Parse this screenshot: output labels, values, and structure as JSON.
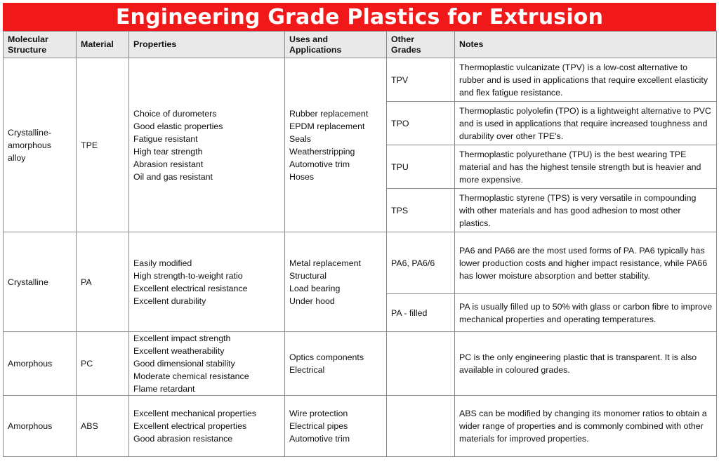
{
  "title": "Engineering Grade Plastics for Extrusion",
  "headers": {
    "molecular": "Molecular\nStructure",
    "material": "Material",
    "properties": "Properties",
    "uses": "Uses and\nApplications",
    "other": "Other\nGrades",
    "notes": "Notes"
  },
  "rows": {
    "tpe": {
      "structure": "Crystalline-\namorphous\nalloy",
      "material": "TPE",
      "properties": "Choice of durometers\nGood elastic properties\nFatigue resistant\nHigh tear strength\nAbrasion resistant\nOil and gas resistant",
      "uses": "Rubber replacement\nEPDM replacement\nSeals\nWeatherstripping\nAutomotive trim\nHoses",
      "grades": [
        {
          "grade": "TPV",
          "note": "Thermoplastic vulcanizate (TPV) is a low-cost alternative to rubber and is used in applications that require excellent elasticity and flex fatigue resistance."
        },
        {
          "grade": "TPO",
          "note": "Thermoplastic polyolefin (TPO) is a lightweight alternative to PVC and is used in applications that require increased toughness and durability over other TPE's."
        },
        {
          "grade": "TPU",
          "note": "Thermoplastic polyurethane (TPU) is the best wearing TPE material and has the highest tensile strength but is heavier and more expensive."
        },
        {
          "grade": "TPS",
          "note": "Thermoplastic styrene (TPS) is very versatile in compounding with other materials and has good adhesion to most other plastics."
        }
      ]
    },
    "pa": {
      "structure": "Crystalline",
      "material": "PA",
      "properties": "Easily modified\nHigh strength-to-weight ratio\nExcellent electrical resistance\nExcellent durability",
      "uses": "Metal replacement\nStructural\nLoad bearing\nUnder hood",
      "grades": [
        {
          "grade": "PA6, PA6/6",
          "note": "PA6 and PA66 are the most used forms of PA. PA6 typically has lower production costs and higher impact resistance, while PA66 has lower moisture absorption and better stability."
        },
        {
          "grade": "PA - filled",
          "note": "PA is usually filled up to 50% with glass or carbon fibre to improve mechanical properties and operating temperatures."
        }
      ]
    },
    "pc": {
      "structure": "Amorphous",
      "material": "PC",
      "properties": "Excellent impact strength\nExcellent weatherability\nGood dimensional stability\nModerate chemical resistance\nFlame retardant",
      "uses": "Optics components\nElectrical",
      "grade": "",
      "note": "PC is the only engineering plastic that is transparent. It is also available in coloured grades."
    },
    "abs": {
      "structure": "Amorphous",
      "material": "ABS",
      "properties": "Excellent mechanical properties\nExcellent electrical properties\nGood abrasion resistance",
      "uses": "Wire protection\nElectrical pipes\nAutomotive trim",
      "grade": "",
      "note": "ABS can be modified by changing its monomer ratios to obtain a wider range of properties and is commonly combined with other materials for improved properties."
    }
  }
}
